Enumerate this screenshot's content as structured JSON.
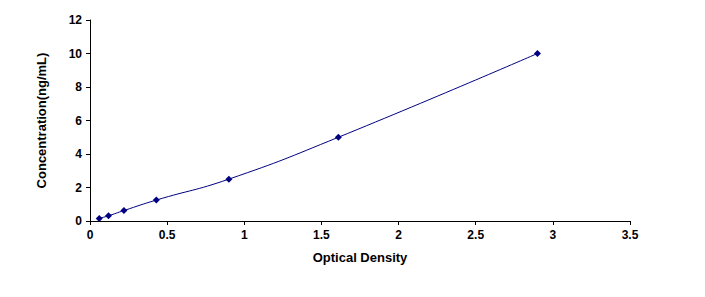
{
  "chart_data": {
    "type": "line",
    "x_label": "Optical Density",
    "y_label": "Concentration(ng/mL)",
    "x": [
      0.06,
      0.12,
      0.22,
      0.43,
      0.9,
      1.61,
      2.9
    ],
    "values": [
      0.156,
      0.312,
      0.625,
      1.25,
      2.5,
      5,
      10
    ],
    "color": "#000080",
    "marker": "diamond",
    "line_style": "solid",
    "xlim": [
      0,
      3.5
    ],
    "xticks": [
      0,
      0.5,
      1,
      1.5,
      2,
      2.5,
      3,
      3.5
    ],
    "ylim": [
      0,
      12
    ],
    "yticks": [
      0,
      2,
      4,
      6,
      8,
      10,
      12
    ],
    "grid": false
  }
}
